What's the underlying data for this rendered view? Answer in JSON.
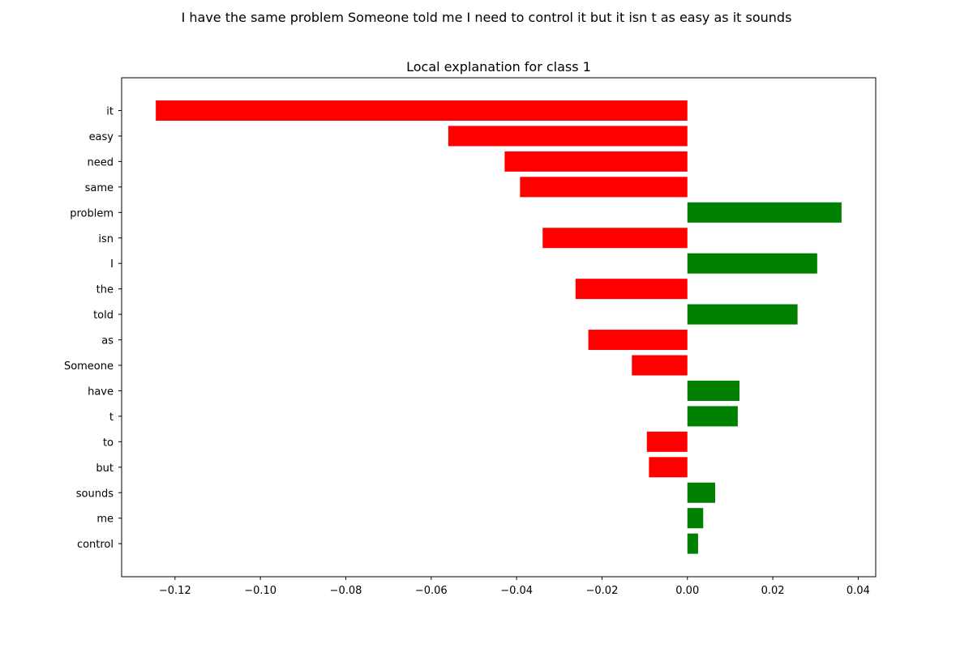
{
  "figure": {
    "suptitle": "I have the same problem Someone told me I need to control it but it isn t as easy as it sounds"
  },
  "chart_data": {
    "type": "bar",
    "orientation": "horizontal",
    "title": "Local explanation for class 1",
    "xlabel": "",
    "ylabel": "",
    "categories": [
      "it",
      "easy",
      "need",
      "same",
      "problem",
      "isn",
      "I",
      "the",
      "told",
      "as",
      "Someone",
      "have",
      "t",
      "to",
      "but",
      "sounds",
      "me",
      "control"
    ],
    "values": [
      -0.1245,
      -0.056,
      -0.0428,
      -0.0392,
      0.0361,
      -0.0339,
      0.0304,
      -0.0262,
      0.0258,
      -0.0232,
      -0.013,
      0.0122,
      0.0118,
      -0.0095,
      -0.009,
      0.0065,
      0.0037,
      0.0025
    ],
    "xlim": [
      -0.1325,
      0.0441
    ],
    "xticks": [
      -0.12,
      -0.1,
      -0.08,
      -0.06,
      -0.04,
      -0.02,
      0.0,
      0.02,
      0.04
    ],
    "xtick_labels": [
      "−0.12",
      "−0.10",
      "−0.08",
      "−0.06",
      "−0.04",
      "−0.02",
      "0.00",
      "0.02",
      "0.04"
    ],
    "colors": {
      "positive": "#008000",
      "negative": "#ff0000"
    },
    "grid": false,
    "legend": "none"
  }
}
